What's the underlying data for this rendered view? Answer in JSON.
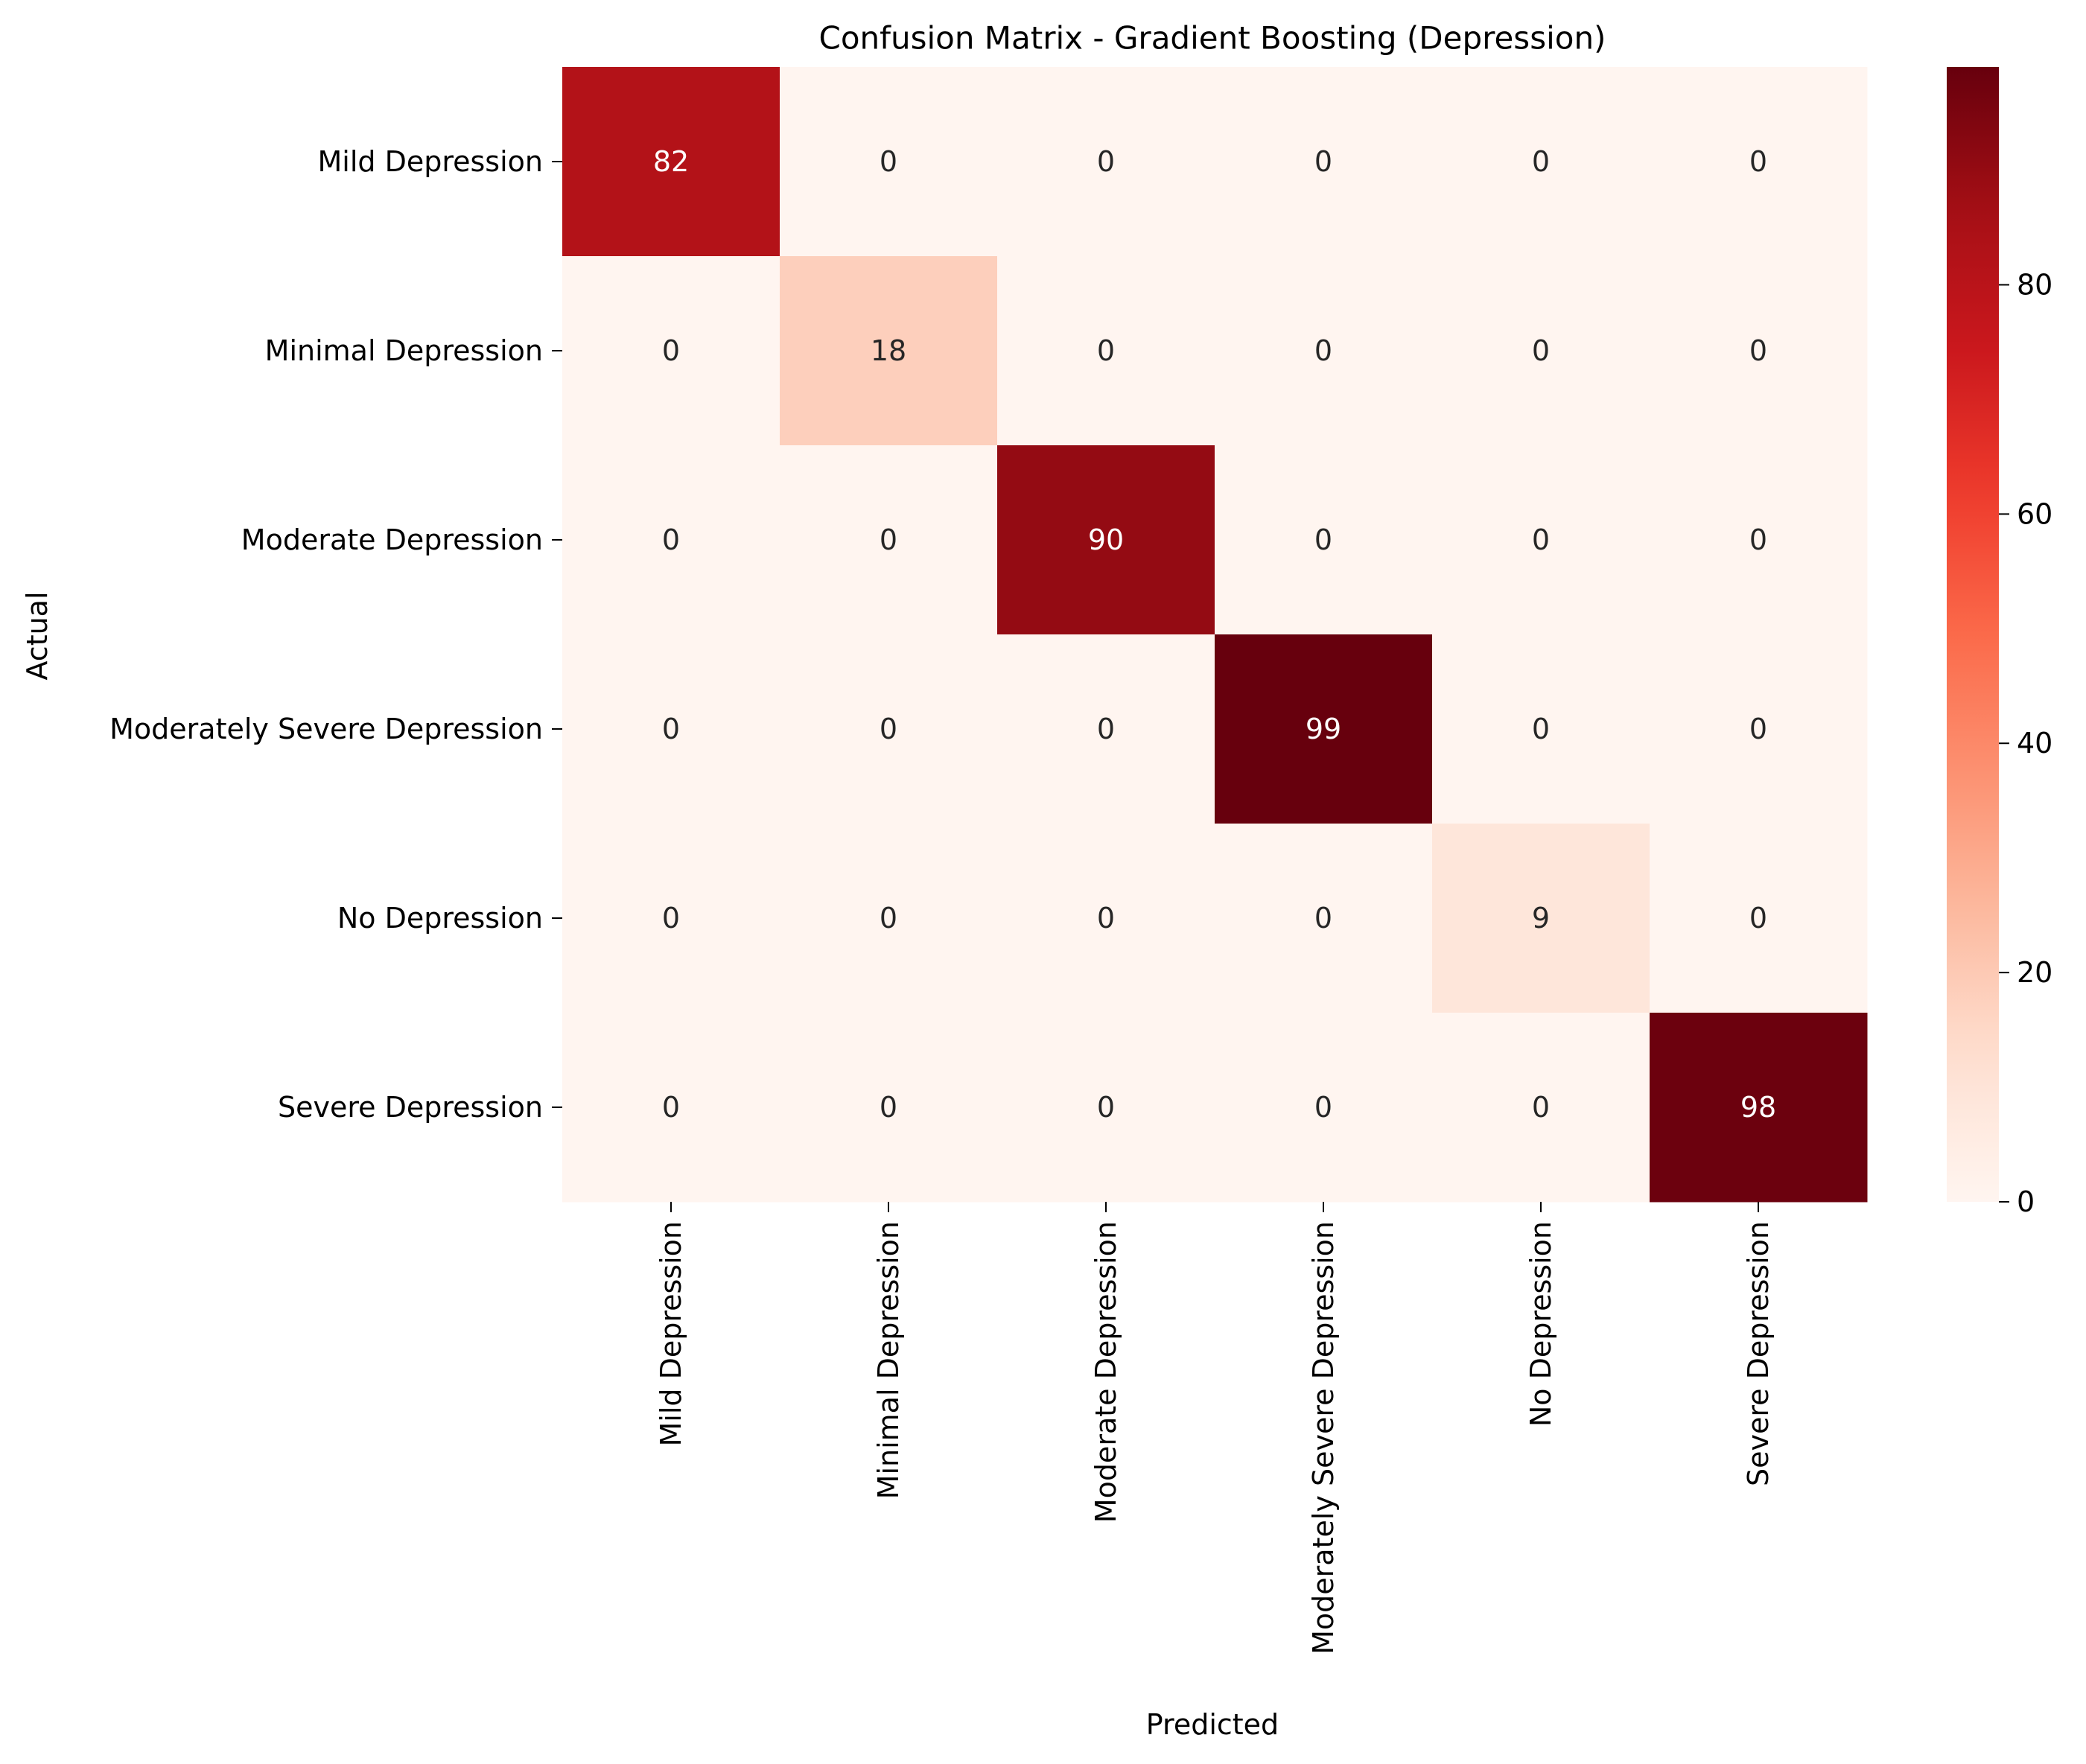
{
  "chart_data": {
    "type": "heatmap",
    "title": "Confusion Matrix - Gradient Boosting (Depression)",
    "xlabel": "Predicted",
    "ylabel": "Actual",
    "x_categories": [
      "Mild Depression",
      "Minimal Depression",
      "Moderate Depression",
      "Moderately Severe Depression",
      "No Depression",
      "Severe Depression"
    ],
    "y_categories": [
      "Mild Depression",
      "Minimal Depression",
      "Moderate Depression",
      "Moderately Severe Depression",
      "No Depression",
      "Severe Depression"
    ],
    "values": [
      [
        82,
        0,
        0,
        0,
        0,
        0
      ],
      [
        0,
        18,
        0,
        0,
        0,
        0
      ],
      [
        0,
        0,
        90,
        0,
        0,
        0
      ],
      [
        0,
        0,
        0,
        99,
        0,
        0
      ],
      [
        0,
        0,
        0,
        0,
        9,
        0
      ],
      [
        0,
        0,
        0,
        0,
        0,
        98
      ]
    ],
    "colormap": "Reds",
    "vmin": 0,
    "vmax": 99,
    "colorbar_ticks": [
      0,
      20,
      40,
      60,
      80
    ]
  }
}
